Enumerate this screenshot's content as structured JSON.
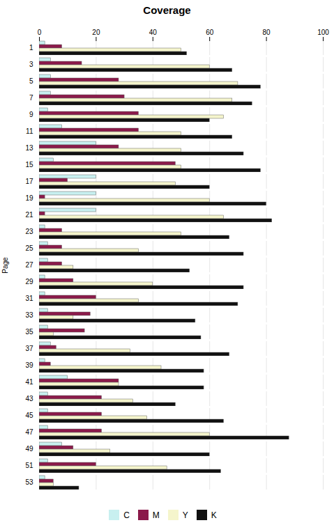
{
  "chart_data": {
    "type": "bar",
    "orientation": "horizontal",
    "title": "Coverage",
    "ylabel": "Page",
    "categories": [
      "1",
      "3",
      "5",
      "7",
      "9",
      "11",
      "13",
      "15",
      "17",
      "19",
      "21",
      "23",
      "25",
      "27",
      "29",
      "31",
      "33",
      "35",
      "37",
      "39",
      "41",
      "43",
      "45",
      "47",
      "49",
      "51",
      "53"
    ],
    "series": [
      {
        "name": "C",
        "color": "#c8f0f0",
        "values": [
          2,
          4,
          4,
          4,
          3,
          8,
          20,
          5,
          20,
          20,
          20,
          2,
          3,
          3,
          2,
          2,
          3,
          3,
          4,
          2,
          10,
          3,
          3,
          3,
          8,
          3,
          2
        ]
      },
      {
        "name": "M",
        "color": "#8b1a4a",
        "values": [
          8,
          15,
          28,
          30,
          35,
          35,
          28,
          48,
          10,
          2,
          2,
          8,
          8,
          8,
          12,
          20,
          18,
          16,
          6,
          4,
          28,
          22,
          22,
          22,
          12,
          20,
          5
        ]
      },
      {
        "name": "Y",
        "color": "#f5f5cc",
        "values": [
          50,
          60,
          70,
          68,
          65,
          50,
          50,
          50,
          48,
          60,
          65,
          50,
          35,
          12,
          40,
          35,
          12,
          5,
          32,
          43,
          28,
          33,
          38,
          60,
          25,
          45,
          5
        ]
      },
      {
        "name": "K",
        "color": "#111111",
        "values": [
          52,
          68,
          78,
          75,
          60,
          68,
          72,
          78,
          60,
          80,
          82,
          67,
          72,
          53,
          72,
          70,
          55,
          57,
          67,
          58,
          58,
          48,
          65,
          88,
          60,
          64,
          14
        ]
      }
    ],
    "xlim": [
      0,
      100
    ],
    "xticks": [
      0,
      20,
      40,
      60,
      80,
      100
    ],
    "grid": true,
    "legend": "bottom"
  }
}
